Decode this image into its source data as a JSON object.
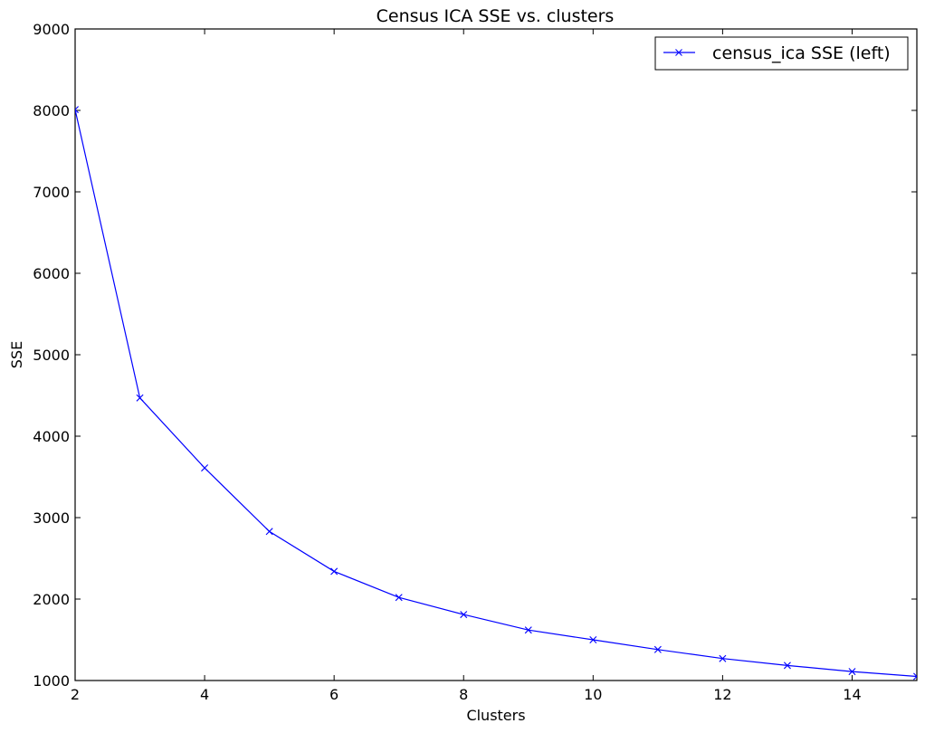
{
  "chart_data": {
    "type": "line",
    "title": "Census ICA SSE vs. clusters",
    "xlabel": "Clusters",
    "ylabel": "SSE",
    "xlim": [
      2,
      15
    ],
    "ylim": [
      1000,
      9000
    ],
    "xticks": [
      2,
      4,
      6,
      8,
      10,
      12,
      14
    ],
    "yticks": [
      1000,
      2000,
      3000,
      4000,
      5000,
      6000,
      7000,
      8000,
      9000
    ],
    "grid": false,
    "legend_position": "top-right",
    "series": [
      {
        "name": "census_ica SSE (left)",
        "color": "#0000ff",
        "marker": "x",
        "x": [
          2,
          3,
          4,
          5,
          6,
          7,
          8,
          9,
          10,
          11,
          12,
          13,
          14,
          15
        ],
        "y": [
          8010,
          4470,
          3610,
          2830,
          2340,
          2020,
          1810,
          1620,
          1500,
          1380,
          1270,
          1185,
          1110,
          1050
        ]
      }
    ]
  }
}
